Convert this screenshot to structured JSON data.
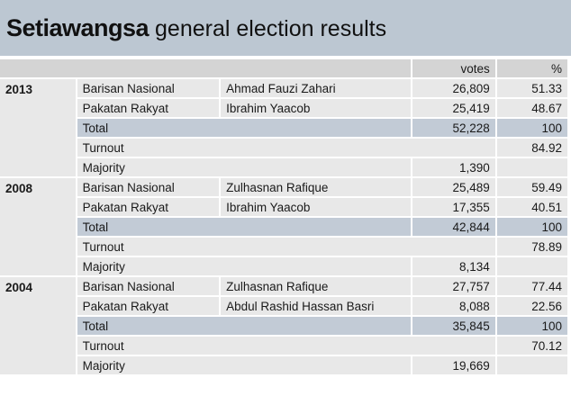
{
  "title": {
    "bold": "Setiawangsa",
    "rest": " general election results"
  },
  "columns": {
    "votes": "votes",
    "pct": "%"
  },
  "elections": [
    {
      "year": "2013",
      "rows": [
        {
          "party": "Barisan Nasional",
          "candidate": "Ahmad Fauzi Zahari",
          "votes": "26,809",
          "pct": "51.33"
        },
        {
          "party": "Pakatan Rakyat",
          "candidate": "Ibrahim Yaacob",
          "votes": "25,419",
          "pct": "48.67"
        }
      ],
      "total": {
        "label": "Total",
        "votes": "52,228",
        "pct": "100"
      },
      "turnout": {
        "label": "Turnout",
        "pct": "84.92"
      },
      "majority": {
        "label": "Majority",
        "votes": "1,390"
      }
    },
    {
      "year": "2008",
      "rows": [
        {
          "party": "Barisan Nasional",
          "candidate": "Zulhasnan Rafique",
          "votes": "25,489",
          "pct": "59.49"
        },
        {
          "party": "Pakatan Rakyat",
          "candidate": "Ibrahim Yaacob",
          "votes": "17,355",
          "pct": "40.51"
        }
      ],
      "total": {
        "label": "Total",
        "votes": "42,844",
        "pct": "100"
      },
      "turnout": {
        "label": "Turnout",
        "pct": "78.89"
      },
      "majority": {
        "label": "Majority",
        "votes": "8,134"
      }
    },
    {
      "year": "2004",
      "rows": [
        {
          "party": "Barisan Nasional",
          "candidate": "Zulhasnan Rafique",
          "votes": "27,757",
          "pct": "77.44"
        },
        {
          "party": "Pakatan Rakyat",
          "candidate": "Abdul Rashid Hassan Basri",
          "votes": "8,088",
          "pct": "22.56"
        }
      ],
      "total": {
        "label": "Total",
        "votes": "35,845",
        "pct": "100"
      },
      "turnout": {
        "label": "Turnout",
        "pct": "70.12"
      },
      "majority": {
        "label": "Majority",
        "votes": "19,669"
      }
    }
  ]
}
